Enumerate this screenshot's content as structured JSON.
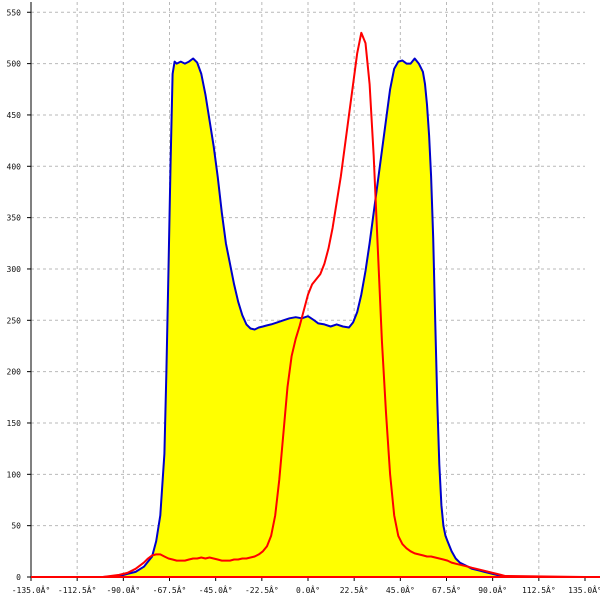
{
  "chart_data": {
    "type": "area",
    "title": "",
    "xlabel": "",
    "ylabel": "",
    "xlim": [
      -135,
      135
    ],
    "ylim": [
      0,
      560
    ],
    "grid": true,
    "x_ticks": [
      "-135.0Â°",
      "-112.5Â°",
      "-90.0Â°",
      "-67.5Â°",
      "-45.0Â°",
      "-22.5Â°",
      "0.0Â°",
      "22.5Â°",
      "45.0Â°",
      "67.5Â°",
      "90.0Â°",
      "112.5Â°",
      "135.0Â°"
    ],
    "x_tick_values": [
      -135,
      -112.5,
      -90,
      -67.5,
      -45,
      -22.5,
      0,
      22.5,
      45,
      67.5,
      90,
      112.5,
      135
    ],
    "y_ticks": [
      "0",
      "50",
      "100",
      "150",
      "200",
      "250",
      "300",
      "350",
      "400",
      "450",
      "500",
      "550"
    ],
    "y_tick_values": [
      0,
      50,
      100,
      150,
      200,
      250,
      300,
      350,
      400,
      450,
      500,
      550
    ],
    "fill_color": "#ffff00",
    "series": [
      {
        "color": "#0000cc",
        "filled": true,
        "x": [
          -135,
          -100,
          -92,
          -88,
          -84,
          -80,
          -76,
          -74,
          -72,
          -70,
          -69,
          -68,
          -67,
          -66,
          -65,
          -64,
          -62,
          -60,
          -58,
          -56,
          -54,
          -52,
          -50,
          -48,
          -46,
          -44,
          -42,
          -40,
          -38,
          -36,
          -34,
          -32,
          -30,
          -28,
          -26,
          -24,
          -22,
          -20,
          -18,
          -15,
          -12,
          -9,
          -6,
          -3,
          0,
          3,
          5,
          8,
          11,
          14,
          17,
          20,
          22,
          24,
          26,
          28,
          30,
          32,
          34,
          36,
          38,
          40,
          42,
          44,
          46,
          48,
          50,
          52,
          54,
          56,
          57,
          58,
          59,
          60,
          61,
          62,
          63,
          64,
          65,
          66,
          67,
          68,
          70,
          72,
          74,
          76,
          78,
          80,
          82,
          84,
          86,
          88,
          90,
          92,
          95,
          100,
          135
        ],
        "values": [
          0,
          0,
          1,
          3,
          5,
          10,
          20,
          35,
          60,
          120,
          200,
          300,
          400,
          490,
          502,
          500,
          502,
          500,
          502,
          505,
          501,
          490,
          470,
          445,
          420,
          390,
          355,
          325,
          305,
          285,
          268,
          255,
          246,
          242,
          241,
          243,
          244,
          245,
          246,
          248,
          250,
          252,
          253,
          252,
          254,
          250,
          247,
          246,
          244,
          246,
          244,
          243,
          248,
          258,
          275,
          298,
          325,
          355,
          385,
          415,
          445,
          475,
          495,
          502,
          503,
          500,
          500,
          505,
          500,
          492,
          480,
          460,
          430,
          390,
          330,
          250,
          170,
          110,
          70,
          50,
          40,
          35,
          25,
          18,
          14,
          12,
          10,
          8,
          7,
          6,
          5,
          4,
          3,
          2,
          1,
          0,
          0
        ]
      },
      {
        "color": "#ff0000",
        "filled": false,
        "x": [
          -135,
          -100,
          -92,
          -88,
          -84,
          -80,
          -78,
          -76,
          -74,
          -72,
          -70,
          -68,
          -66,
          -64,
          -62,
          -60,
          -58,
          -56,
          -54,
          -52,
          -50,
          -48,
          -46,
          -44,
          -42,
          -40,
          -38,
          -36,
          -34,
          -32,
          -30,
          -28,
          -26,
          -24,
          -22,
          -20,
          -18,
          -16,
          -14,
          -12,
          -10,
          -8,
          -6,
          -4,
          -2,
          0,
          2,
          4,
          6,
          8,
          10,
          12,
          14,
          16,
          18,
          20,
          22,
          24,
          26,
          28,
          30,
          32,
          34,
          36,
          38,
          40,
          42,
          44,
          46,
          48,
          50,
          52,
          54,
          56,
          58,
          60,
          62,
          64,
          66,
          68,
          70,
          72,
          74,
          76,
          78,
          80,
          82,
          84,
          86,
          88,
          90,
          92,
          94,
          96,
          135
        ],
        "values": [
          0,
          0,
          2,
          4,
          8,
          14,
          18,
          21,
          22,
          22,
          20,
          18,
          17,
          16,
          16,
          16,
          17,
          18,
          18,
          19,
          18,
          19,
          18,
          17,
          16,
          16,
          16,
          17,
          17,
          18,
          18,
          19,
          20,
          22,
          25,
          30,
          40,
          60,
          95,
          140,
          185,
          215,
          232,
          245,
          260,
          275,
          285,
          290,
          295,
          305,
          320,
          340,
          365,
          390,
          420,
          450,
          480,
          510,
          530,
          520,
          480,
          410,
          320,
          230,
          160,
          100,
          60,
          40,
          32,
          28,
          25,
          23,
          22,
          21,
          20,
          20,
          19,
          18,
          17,
          16,
          14,
          13,
          12,
          11,
          10,
          9,
          8,
          7,
          6,
          5,
          4,
          3,
          2,
          1,
          0
        ]
      }
    ]
  }
}
